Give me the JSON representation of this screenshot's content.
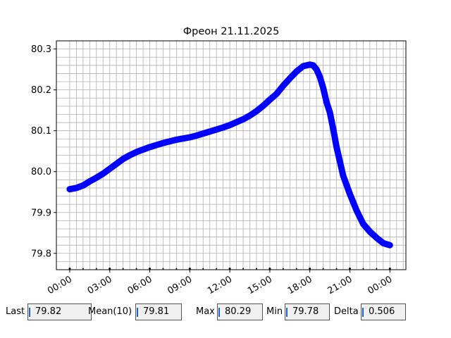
{
  "chart_data": {
    "type": "scatter",
    "title": "Фреон 21.11.2025",
    "xlabel": "",
    "ylabel": "",
    "x_unit": "hours",
    "xlim": [
      -1,
      25.2
    ],
    "ylim": [
      79.76,
      80.32
    ],
    "x_tick_labels": [
      "00:00",
      "03:00",
      "06:00",
      "09:00",
      "12:00",
      "15:00",
      "18:00",
      "21:00",
      "00:00"
    ],
    "x_tick_values": [
      0,
      3,
      6,
      9,
      12,
      15,
      18,
      21,
      24
    ],
    "y_tick_labels": [
      "79.8",
      "79.9",
      "80.0",
      "80.1",
      "80.2",
      "80.3"
    ],
    "y_tick_values": [
      79.8,
      79.9,
      80.0,
      80.1,
      80.2,
      80.3
    ],
    "grid": true,
    "series": [
      {
        "color": "#0000ff",
        "x": [
          0,
          0.5,
          1,
          1.5,
          2,
          2.5,
          3,
          3.5,
          4,
          4.5,
          5,
          5.5,
          6,
          6.5,
          7,
          7.5,
          8,
          8.5,
          9,
          9.5,
          10,
          10.5,
          11,
          11.5,
          12,
          12.5,
          13,
          13.5,
          14,
          14.5,
          15,
          15.5,
          16,
          16.5,
          17,
          17.5,
          18,
          18.25,
          18.5,
          18.75,
          19,
          19.25,
          19.5,
          19.75,
          20,
          20.5,
          21,
          21.5,
          22,
          22.5,
          23,
          23.5,
          24
        ],
        "y": [
          79.957,
          79.96,
          79.966,
          79.976,
          79.985,
          79.995,
          80.007,
          80.019,
          80.031,
          80.04,
          80.048,
          80.054,
          80.06,
          80.065,
          80.07,
          80.074,
          80.078,
          80.081,
          80.084,
          80.088,
          80.093,
          80.098,
          80.103,
          80.108,
          80.114,
          80.121,
          80.128,
          80.137,
          80.148,
          80.161,
          80.176,
          80.19,
          80.21,
          80.228,
          80.245,
          80.258,
          80.262,
          80.26,
          80.25,
          80.232,
          80.205,
          80.17,
          80.145,
          80.105,
          80.06,
          79.99,
          79.945,
          79.905,
          79.872,
          79.853,
          79.838,
          79.825,
          79.82
        ]
      }
    ]
  },
  "stats": {
    "last": {
      "label": "Last",
      "value": "79.82"
    },
    "mean": {
      "label": "Mean(10)",
      "value": "79.81"
    },
    "max": {
      "label": "Max",
      "value": "80.29"
    },
    "min": {
      "label": "Min",
      "value": "79.78"
    },
    "delta": {
      "label": "Delta",
      "value": "0.506"
    }
  }
}
